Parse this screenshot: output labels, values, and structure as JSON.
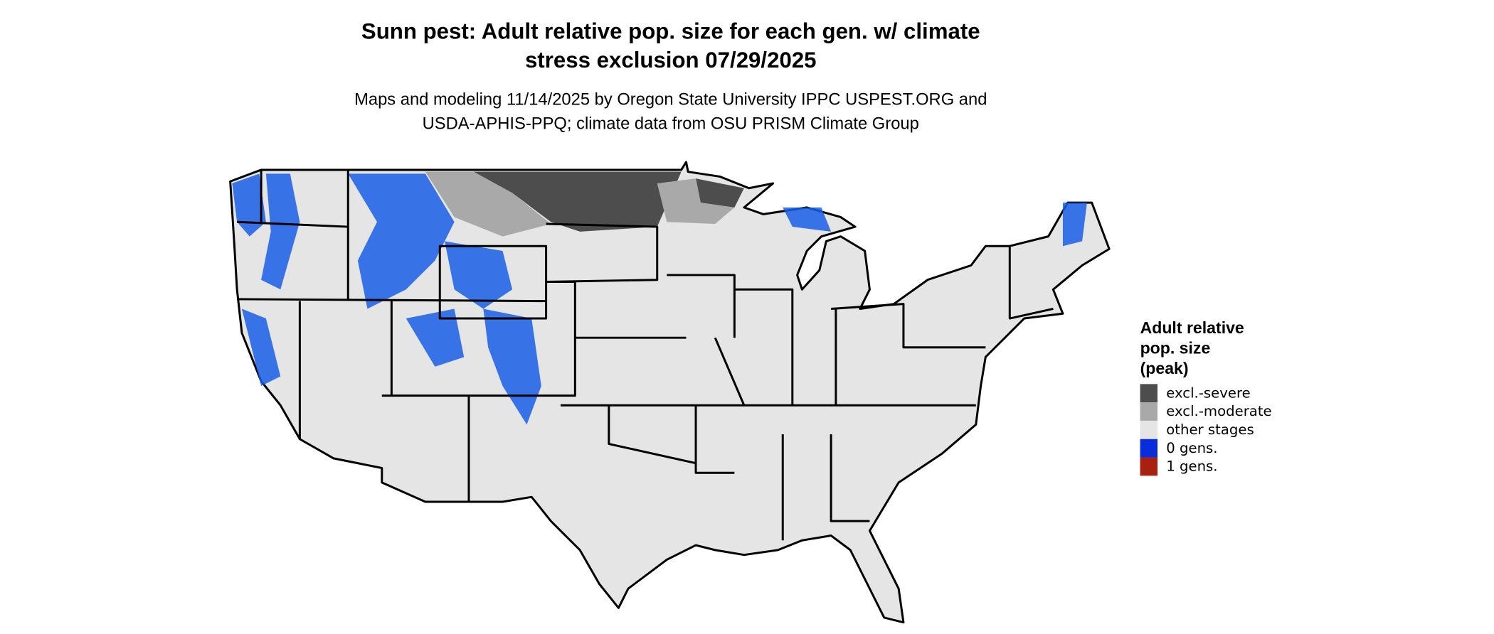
{
  "header": {
    "title": [
      "Sunn pest: Adult relative pop. size for each gen. w/ climate",
      "stress exclusion 07/29/2025"
    ],
    "subtitle": [
      "Maps and modeling 11/14/2025 by Oregon State University IPPC USPEST.ORG and",
      "USDA-APHIS-PPQ; climate data from OSU PRISM Climate Group"
    ]
  },
  "legend": {
    "title": [
      "Adult relative",
      "pop. size",
      "(peak)"
    ],
    "items": [
      {
        "label": "excl.-severe",
        "color": "#4d4d4d"
      },
      {
        "label": "excl.-moderate",
        "color": "#a9a9a9"
      },
      {
        "label": "other stages",
        "color": "#e5e5e5"
      },
      {
        "label": "0 gens.",
        "color": "#0a2ddb"
      },
      {
        "label": "1 gens.",
        "color": "#a8200f"
      }
    ]
  }
}
